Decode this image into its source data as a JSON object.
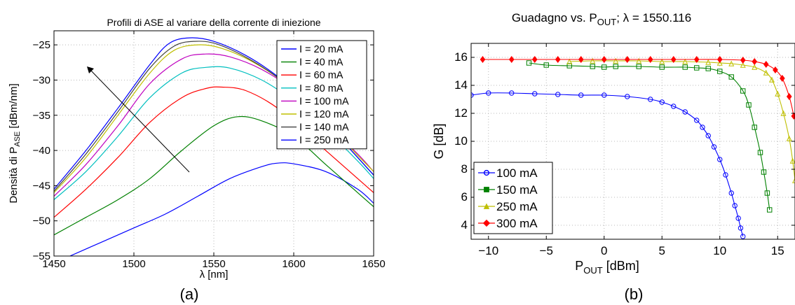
{
  "chart_data": [
    {
      "type": "line",
      "panel_label": "(a)",
      "title": "Profili di ASE al variare della corrente di iniezione",
      "xlabel": "λ [nm]",
      "ylabel_prefix": "Densità di P",
      "ylabel_sub": "ASE",
      "ylabel_suffix": " [dBm/nm]",
      "xlim": [
        1450,
        1650
      ],
      "ylim": [
        -55,
        -23
      ],
      "xticks": [
        1450,
        1500,
        1550,
        1600,
        1650
      ],
      "yticks": [
        -55,
        -50,
        -45,
        -40,
        -35,
        -30,
        -25
      ],
      "grid": "dotted",
      "legend_position": "top-right",
      "annotation": "arrow indicating increasing current",
      "series": [
        {
          "name": "I = 20 mA",
          "color": "#0000ff",
          "x": [
            1460,
            1480,
            1500,
            1520,
            1540,
            1560,
            1580,
            1590,
            1600,
            1620,
            1640,
            1650
          ],
          "y": [
            -55,
            -53,
            -51,
            -49,
            -46.5,
            -44,
            -42.3,
            -41.8,
            -41.9,
            -43,
            -45.5,
            -47.5
          ]
        },
        {
          "name": "I = 40 mA",
          "color": "#008000",
          "x": [
            1450,
            1470,
            1490,
            1510,
            1530,
            1550,
            1565,
            1580,
            1600,
            1620,
            1640,
            1650
          ],
          "y": [
            -52,
            -49.5,
            -47,
            -44,
            -40,
            -36.5,
            -35.2,
            -35.8,
            -38,
            -42,
            -46,
            -48
          ]
        },
        {
          "name": "I = 60 mA",
          "color": "#ff0000",
          "x": [
            1450,
            1470,
            1490,
            1510,
            1530,
            1545,
            1555,
            1570,
            1590,
            1610,
            1630,
            1650
          ],
          "y": [
            -49.5,
            -45.5,
            -41,
            -36,
            -32.5,
            -31.2,
            -31,
            -31.5,
            -34,
            -38,
            -42,
            -46
          ]
        },
        {
          "name": "I = 80 mA",
          "color": "#00bfbf",
          "x": [
            1450,
            1470,
            1490,
            1510,
            1530,
            1545,
            1560,
            1580,
            1600,
            1620,
            1640,
            1650
          ],
          "y": [
            -47,
            -43,
            -38,
            -32.5,
            -29,
            -28.2,
            -28.3,
            -30,
            -33,
            -37,
            -41.5,
            -44
          ]
        },
        {
          "name": "I = 100 mA",
          "color": "#bf00bf",
          "x": [
            1450,
            1470,
            1490,
            1510,
            1530,
            1545,
            1560,
            1580,
            1600,
            1620,
            1640,
            1650
          ],
          "y": [
            -46.5,
            -42,
            -36.5,
            -30.5,
            -27,
            -26.3,
            -26.7,
            -28.5,
            -31.5,
            -36,
            -40.5,
            -43
          ]
        },
        {
          "name": "I = 120 mA",
          "color": "#bfbf00",
          "x": [
            1450,
            1470,
            1490,
            1510,
            1525,
            1540,
            1555,
            1575,
            1595,
            1615,
            1635,
            1650
          ],
          "y": [
            -46,
            -41,
            -35,
            -29,
            -25.8,
            -25,
            -25.5,
            -27.5,
            -30.5,
            -34.5,
            -39.5,
            -43
          ]
        },
        {
          "name": "I = 140 mA",
          "color": "#404040",
          "x": [
            1450,
            1470,
            1490,
            1510,
            1525,
            1538,
            1552,
            1572,
            1592,
            1612,
            1632,
            1650
          ],
          "y": [
            -45.8,
            -40.5,
            -34.5,
            -28.3,
            -25.2,
            -24.5,
            -24.9,
            -27,
            -30,
            -34,
            -39,
            -43.5
          ]
        },
        {
          "name": "I = 250 mA",
          "color": "#0000ff",
          "x": [
            1450,
            1470,
            1490,
            1510,
            1522,
            1535,
            1550,
            1570,
            1590,
            1610,
            1630,
            1650
          ],
          "y": [
            -45.5,
            -40,
            -34,
            -27.8,
            -24.8,
            -24,
            -24.5,
            -26.5,
            -29.5,
            -33.5,
            -38.5,
            -43.5
          ]
        }
      ]
    },
    {
      "type": "line",
      "panel_label": "(b)",
      "title_prefix": "Guadagno vs. P",
      "title_sub": "OUT",
      "title_suffix": "; λ = 1550.116",
      "xlabel_prefix": "P",
      "xlabel_sub": "OUT",
      "xlabel_suffix": " [dBm]",
      "ylabel": "G [dB]",
      "xlim": [
        -11.5,
        16.5
      ],
      "ylim": [
        3,
        17
      ],
      "xticks": [
        -10,
        -5,
        0,
        5,
        10,
        15
      ],
      "yticks": [
        4,
        6,
        8,
        10,
        12,
        14,
        16
      ],
      "grid": "dotted",
      "legend_position": "bottom-left",
      "series": [
        {
          "name": "100 mA",
          "color": "#0000ff",
          "marker": "circle",
          "x": [
            -11.5,
            -10,
            -8,
            -6,
            -4,
            -2,
            0,
            2,
            4,
            5,
            6,
            7,
            8,
            8.5,
            9,
            9.5,
            10,
            10.5,
            11,
            11.3,
            11.6,
            11.8,
            12
          ],
          "y": [
            13.3,
            13.45,
            13.45,
            13.4,
            13.35,
            13.3,
            13.3,
            13.2,
            13.0,
            12.8,
            12.5,
            12.1,
            11.5,
            11.0,
            10.4,
            9.6,
            8.7,
            7.6,
            6.3,
            5.4,
            4.5,
            3.8,
            3.2
          ]
        },
        {
          "name": "150 mA",
          "color": "#008000",
          "marker": "square",
          "x": [
            -6.5,
            -5,
            -3,
            -1,
            0,
            1,
            3,
            5,
            7,
            8,
            9,
            10,
            11,
            12,
            12.5,
            13,
            13.5,
            13.8,
            14.1,
            14.3
          ],
          "y": [
            15.6,
            15.45,
            15.4,
            15.35,
            15.3,
            15.35,
            15.35,
            15.3,
            15.3,
            15.25,
            15.2,
            15.0,
            14.6,
            13.6,
            12.6,
            11.0,
            9.2,
            7.8,
            6.3,
            5.1
          ]
        },
        {
          "name": "250 mA",
          "color": "#bfbf00",
          "marker": "triangle",
          "x": [
            -3,
            -1,
            1,
            3,
            5,
            7,
            9,
            10,
            11,
            12,
            13,
            14,
            14.5,
            15,
            15.5,
            16,
            16.3,
            16.5
          ],
          "y": [
            15.7,
            15.75,
            15.75,
            15.75,
            15.7,
            15.7,
            15.65,
            15.6,
            15.55,
            15.45,
            15.3,
            14.9,
            14.4,
            13.4,
            12.0,
            10.2,
            8.6,
            7.2
          ]
        },
        {
          "name": "300 mA",
          "color": "#ff0000",
          "marker": "diamond",
          "x": [
            -10.5,
            -8,
            -6,
            -4,
            -2,
            0,
            2,
            4,
            6,
            8,
            10,
            12,
            13,
            14,
            14.8,
            15.4,
            16,
            16.4
          ],
          "y": [
            15.85,
            15.85,
            15.85,
            15.85,
            15.85,
            15.85,
            15.85,
            15.85,
            15.85,
            15.85,
            15.85,
            15.8,
            15.7,
            15.5,
            15.1,
            14.5,
            13.2,
            11.8
          ]
        }
      ]
    }
  ]
}
